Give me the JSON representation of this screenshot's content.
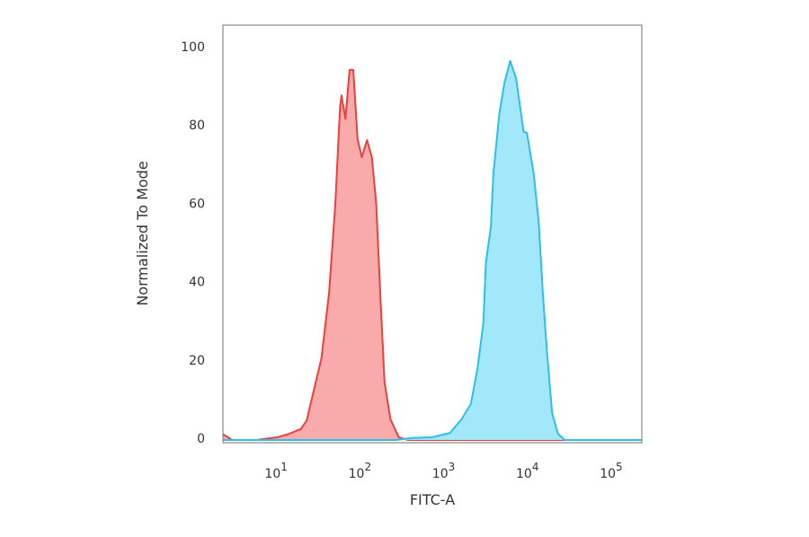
{
  "chart_data": {
    "type": "area",
    "title": "",
    "xlabel": "FITC-A",
    "ylabel": "Normalized To Mode",
    "x_scale": "log",
    "xlim": [
      2,
      200000
    ],
    "ylim": [
      0,
      105
    ],
    "grid": false,
    "legend": "none",
    "xticks": [
      {
        "value": 10,
        "base": "10",
        "exp": "1"
      },
      {
        "value": 100,
        "base": "10",
        "exp": "2"
      },
      {
        "value": 1000,
        "base": "10",
        "exp": "3"
      },
      {
        "value": 10000,
        "base": "10",
        "exp": "4"
      },
      {
        "value": 100000,
        "base": "10",
        "exp": "5"
      }
    ],
    "yticks": [
      {
        "value": 0,
        "label": "0"
      },
      {
        "value": 20,
        "label": "20"
      },
      {
        "value": 40,
        "label": "40"
      },
      {
        "value": 60,
        "label": "60"
      },
      {
        "value": 80,
        "label": "80"
      },
      {
        "value": 100,
        "label": "100"
      }
    ],
    "series": [
      {
        "color": "#e8413f",
        "fill": "#f9a5a5",
        "x": [
          2,
          2.6,
          5,
          9,
          12,
          17,
          20,
          30,
          37,
          44,
          50,
          52,
          58,
          65,
          72,
          81,
          91,
          105,
          120,
          135,
          151,
          170,
          200,
          251,
          324,
          200000
        ],
        "y": [
          1.5,
          0,
          0,
          0.7,
          1.5,
          2.8,
          5,
          20.9,
          37.6,
          60.5,
          85,
          88,
          82,
          94.5,
          94.5,
          76.8,
          72.2,
          76.6,
          72.2,
          60.5,
          37.6,
          14.7,
          5.3,
          0.7,
          0,
          0
        ]
      },
      {
        "color": "#2ebfe6",
        "fill": "#9ee6fb",
        "x": [
          2,
          234,
          355,
          631,
          1023,
          1413,
          1820,
          2188,
          2570,
          2754,
          3162,
          3388,
          3981,
          4571,
          5370,
          6310,
          7762,
          8511,
          10233,
          11749,
          13183,
          14791,
          16982,
          19953,
          23988,
          200000
        ],
        "y": [
          0,
          0,
          0.5,
          0.7,
          1.8,
          5.3,
          9.2,
          18.3,
          29.8,
          45.2,
          54.4,
          68.1,
          83.3,
          91.1,
          96.8,
          92.4,
          78.7,
          78.4,
          68.1,
          55.7,
          37.4,
          22.2,
          6.9,
          1.6,
          0,
          0
        ]
      }
    ]
  }
}
